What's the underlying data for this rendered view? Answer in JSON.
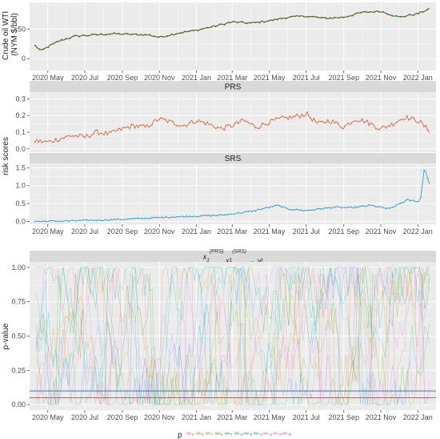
{
  "chart_data": [
    {
      "type": "line",
      "ylabel": "Crude oil WTI\n(NYM $/bbl)",
      "ylim": [
        -20,
        95
      ],
      "yticks": [
        0,
        50
      ],
      "grid": true,
      "series": [
        {
          "x": [
            "2020-04-10",
            "2020-04-20",
            "2020-05-01",
            "2020-05-20",
            "2020-06-15",
            "2020-07-15",
            "2020-08-15",
            "2020-09-15",
            "2020-10-15",
            "2020-11-01",
            "2020-12-01",
            "2021-01-01",
            "2021-02-01",
            "2021-03-01",
            "2021-04-01",
            "2021-05-01",
            "2021-06-01",
            "2021-07-01",
            "2021-08-01",
            "2021-09-01",
            "2021-10-01",
            "2021-11-01",
            "2021-12-01",
            "2022-01-01",
            "2022-01-20"
          ],
          "values": [
            22,
            13,
            20,
            30,
            38,
            40,
            42,
            41,
            40,
            36,
            43,
            48,
            55,
            62,
            60,
            64,
            70,
            72,
            68,
            70,
            78,
            80,
            70,
            76,
            84
          ]
        }
      ]
    },
    {
      "type": "line",
      "facet": "PRS",
      "ylabel": "risk scores",
      "ylim": [
        -0.02,
        0.34
      ],
      "yticks": [
        0.0,
        0.1,
        0.2,
        0.3
      ],
      "series": [
        {
          "color": "#d9663f",
          "x": [
            "2020-04-10",
            "2020-05-01",
            "2020-05-20",
            "2020-06-10",
            "2020-07-01",
            "2020-07-20",
            "2020-08-10",
            "2020-09-01",
            "2020-09-20",
            "2020-10-10",
            "2020-11-01",
            "2020-11-20",
            "2020-12-10",
            "2021-01-01",
            "2021-01-20",
            "2021-02-10",
            "2021-03-01",
            "2021-03-20",
            "2021-04-10",
            "2021-05-01",
            "2021-05-20",
            "2021-06-10",
            "2021-07-01",
            "2021-07-20",
            "2021-08-10",
            "2021-09-01",
            "2021-09-20",
            "2021-10-10",
            "2021-11-01",
            "2021-11-20",
            "2021-12-10",
            "2022-01-01",
            "2022-01-20"
          ],
          "values": [
            0.05,
            0.04,
            0.06,
            0.08,
            0.07,
            0.1,
            0.09,
            0.12,
            0.14,
            0.13,
            0.18,
            0.16,
            0.14,
            0.17,
            0.15,
            0.12,
            0.14,
            0.17,
            0.13,
            0.16,
            0.18,
            0.19,
            0.21,
            0.15,
            0.17,
            0.13,
            0.18,
            0.16,
            0.12,
            0.15,
            0.19,
            0.17,
            0.11
          ]
        }
      ]
    },
    {
      "type": "line",
      "facet": "SRS",
      "ylim": [
        -0.08,
        1.62
      ],
      "yticks": [
        0.0,
        0.5,
        1.0,
        1.5
      ],
      "series": [
        {
          "color": "#3a9cc5",
          "x": [
            "2020-04-10",
            "2020-06-01",
            "2020-08-01",
            "2020-10-01",
            "2020-11-15",
            "2021-01-01",
            "2021-02-15",
            "2021-04-01",
            "2021-05-15",
            "2021-06-01",
            "2021-07-01",
            "2021-08-15",
            "2021-09-15",
            "2021-10-15",
            "2021-11-15",
            "2021-12-15",
            "2022-01-05",
            "2022-01-12",
            "2022-01-20"
          ],
          "values": [
            0.0,
            0.01,
            0.04,
            0.08,
            0.12,
            0.15,
            0.18,
            0.28,
            0.45,
            0.35,
            0.3,
            0.4,
            0.38,
            0.45,
            0.35,
            0.6,
            0.55,
            1.52,
            1.05
          ]
        }
      ]
    },
    {
      "type": "line",
      "facet": "x_1^(PRS) x_1^(SRS) → y_t",
      "ylabel": "p-value",
      "ylim": [
        -0.04,
        1.04
      ],
      "yticks": [
        0.0,
        0.25,
        0.5,
        0.75,
        1.0
      ],
      "hlines": [
        {
          "y": 0.1,
          "color": "#3b5fb5"
        },
        {
          "y": 0.05,
          "color": "#d2452b"
        }
      ],
      "legend": {
        "title": "p",
        "labels": [
          "5",
          "6",
          "7",
          "8",
          "9",
          "10",
          "11",
          "12",
          "13",
          "14",
          "15"
        ],
        "placement": "bottom"
      }
    }
  ],
  "x_axis": {
    "range": [
      "2020-04-01",
      "2022-01-31"
    ],
    "tick_dates": [
      "2020-05-01",
      "2020-07-01",
      "2020-09-01",
      "2020-11-01",
      "2021-01-01",
      "2021-03-01",
      "2021-05-01",
      "2021-07-01",
      "2021-09-01",
      "2021-11-01",
      "2022-01-01"
    ],
    "tick_labels": [
      "2020 May",
      "2020 Jul",
      "2020 Sep",
      "2020 Nov",
      "2021 Jan",
      "2021 Mar",
      "2021 May",
      "2021 Jul",
      "2021 Sep",
      "2021 Nov",
      "2022 Jan"
    ]
  },
  "colors": {
    "panel": "#ebebeb",
    "strip": "#d9d9d9",
    "grid": "#ffffff",
    "oil_line": "#2e7d32",
    "oil_points": "#c62828",
    "legend_palette": [
      "#f8766d",
      "#db8e00",
      "#aea200",
      "#64b200",
      "#00bd5c",
      "#00c1a7",
      "#00bade",
      "#00a6ff",
      "#b385ff",
      "#ef67eb",
      "#ff63b6"
    ]
  }
}
